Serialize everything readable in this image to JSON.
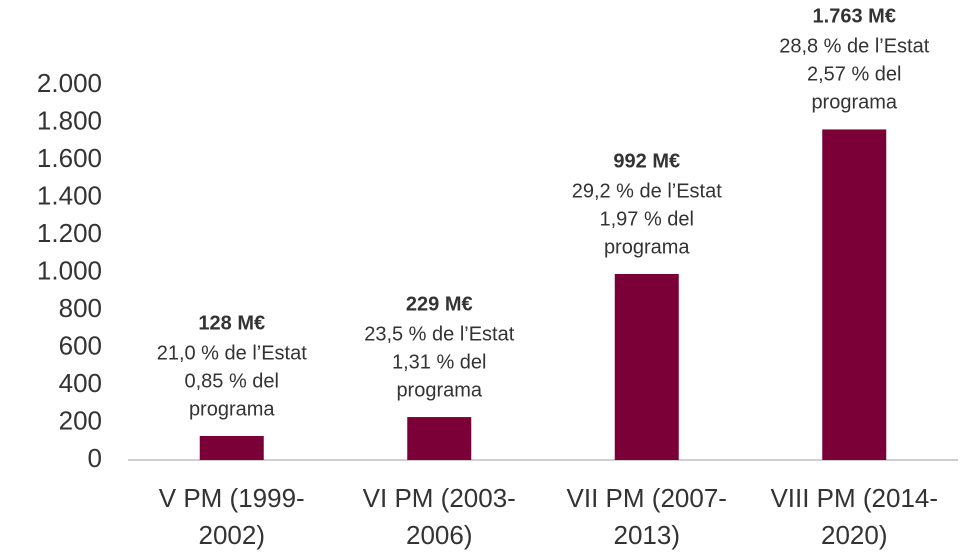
{
  "chart_data": {
    "type": "bar",
    "categories": [
      "V PM (1999-2002)",
      "VI PM (2003-2006)",
      "VII PM (2007-2013)",
      "VIII PM (2014-2020)"
    ],
    "values": [
      128,
      229,
      992,
      1763
    ],
    "value_labels": [
      "128 M€",
      "229 M€",
      "992 M€",
      "1.763 M€"
    ],
    "annotations": [
      [
        "21,0 % de l’Estat",
        "0,85 % del",
        "programa"
      ],
      [
        "23,5 % de l’Estat",
        "1,31 % del",
        "programa"
      ],
      [
        "29,2 % de l’Estat",
        "1,97 % del",
        "programa"
      ],
      [
        "28,8 % de l’Estat",
        "2,57 % del",
        "programa"
      ]
    ],
    "color": "#7a0037",
    "ylim": [
      0,
      2000
    ],
    "yticks": [
      0,
      200,
      400,
      600,
      800,
      {
        "value": 1000,
        "label": "1.000"
      },
      {
        "value": 1200,
        "label": "1.200"
      },
      {
        "value": 1400,
        "label": "1.400"
      },
      {
        "value": 1600,
        "label": "1.600"
      },
      {
        "value": 1800,
        "label": "1.800"
      },
      {
        "value": 2000,
        "label": "2.000"
      }
    ],
    "grid": false
  }
}
